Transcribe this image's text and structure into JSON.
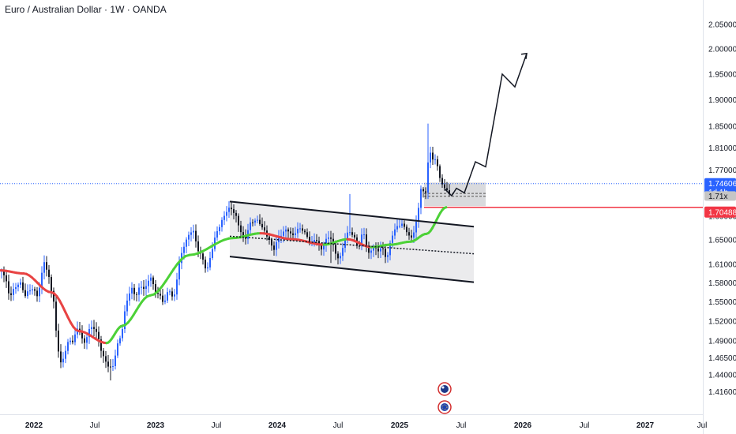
{
  "header": {
    "title": "Euro / Australian Dollar · 1W · OANDA"
  },
  "chart_data": {
    "type": "candlestick",
    "symbol_title": "Euro / Australian Dollar · 1W · OANDA",
    "y_axis": {
      "ylim": [
        1.3995,
        2.068
      ],
      "ticks": [
        2.05,
        2.0,
        1.95,
        1.9,
        1.85,
        1.81,
        1.77,
        1.73,
        1.69,
        1.65,
        1.61,
        1.58,
        1.55,
        1.52,
        1.49,
        1.465,
        1.44,
        1.416
      ],
      "tick_labels": [
        "2.05000",
        "2.00000",
        "1.95000",
        "1.90000",
        "1.85000",
        "1.81000",
        "1.77000",
        "1.73000",
        "1.69000",
        "1.65000",
        "1.61000",
        "1.58000",
        "1.55000",
        "1.52000",
        "1.49000",
        "1.46500",
        "1.44000",
        "1.41600"
      ],
      "scale": "log"
    },
    "x_axis": {
      "labels": [
        "2022",
        "Jul",
        "2023",
        "Jul",
        "2024",
        "Jul",
        "2025",
        "Jul",
        "2026",
        "Jul",
        "2027",
        "Jul"
      ],
      "bold": [
        true,
        false,
        true,
        false,
        true,
        false,
        true,
        false,
        true,
        false,
        true,
        false
      ]
    },
    "price_badges": [
      {
        "value": "1.74606",
        "sub": "1d 1h",
        "color": "#2962ff"
      },
      {
        "value": "1.71x",
        "color": "#c5c5c5"
      },
      {
        "value": "1.70488",
        "color": "#f23645"
      }
    ],
    "reference_lines": {
      "current_price": 1.74606,
      "support_level": 1.70488
    },
    "channel": {
      "upper_start": 1.715,
      "upper_end": 1.672,
      "lower_start": 1.6225,
      "lower_end": 1.581,
      "mid_start": 1.656,
      "mid_end": 1.627
    },
    "moving_average_key_points": [
      1.6,
      1.595,
      1.565,
      1.505,
      1.487,
      1.513,
      1.56,
      1.625,
      1.653,
      1.661,
      1.651,
      1.642,
      1.651,
      1.638,
      1.642,
      1.647,
      1.66,
      1.705
    ],
    "projection_path": [
      1.737,
      1.725,
      1.738,
      1.73,
      1.785,
      1.776,
      1.95,
      1.925,
      1.991
    ]
  }
}
